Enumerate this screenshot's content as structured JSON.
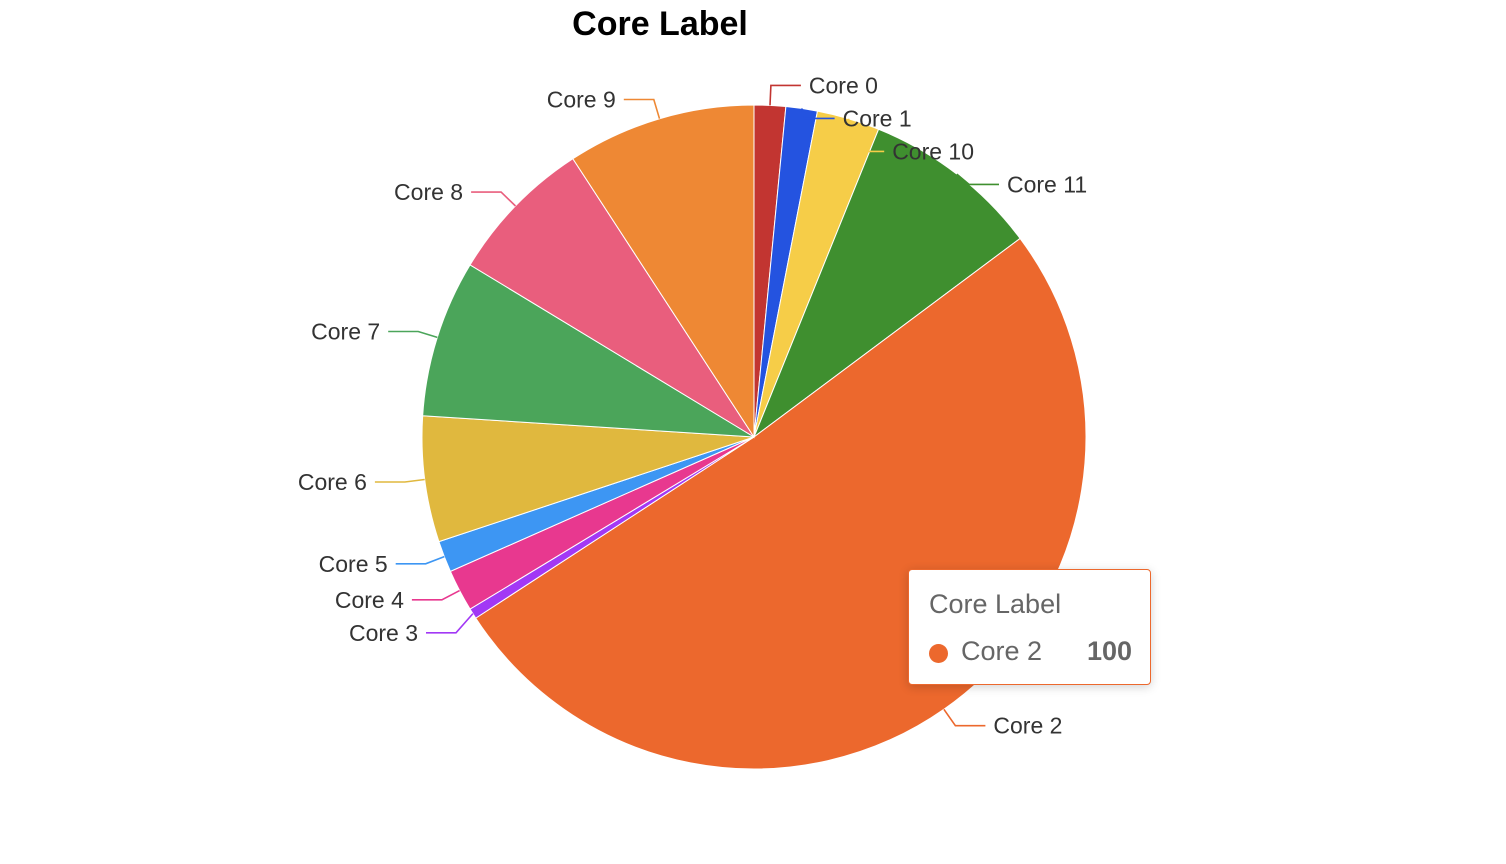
{
  "chart_data": {
    "type": "pie",
    "title": "Core Label",
    "start_angle_deg": 90,
    "direction": "clockwise",
    "slices": [
      {
        "label": "Core 0",
        "value": 3,
        "color": "#c23531"
      },
      {
        "label": "Core 1",
        "value": 3,
        "color": "#2453e0"
      },
      {
        "label": "Core 10",
        "value": 6,
        "color": "#f6cd48"
      },
      {
        "label": "Core 11",
        "value": 17,
        "color": "#3f8f2f"
      },
      {
        "label": "Core 2",
        "value": 100,
        "color": "#ec682d"
      },
      {
        "label": "Core 3",
        "value": 1,
        "color": "#a238f5"
      },
      {
        "label": "Core 4",
        "value": 4,
        "color": "#e8388f"
      },
      {
        "label": "Core 5",
        "value": 3,
        "color": "#3d96f3"
      },
      {
        "label": "Core 6",
        "value": 12,
        "color": "#e0b83e"
      },
      {
        "label": "Core 7",
        "value": 15,
        "color": "#4ba55a"
      },
      {
        "label": "Core 8",
        "value": 14,
        "color": "#e95e7d"
      },
      {
        "label": "Core 9",
        "value": 18,
        "color": "#ee8834"
      }
    ]
  },
  "tooltip": {
    "title": "Core Label",
    "series_name": "Core 2",
    "value": "100",
    "color": "#ec682d"
  }
}
